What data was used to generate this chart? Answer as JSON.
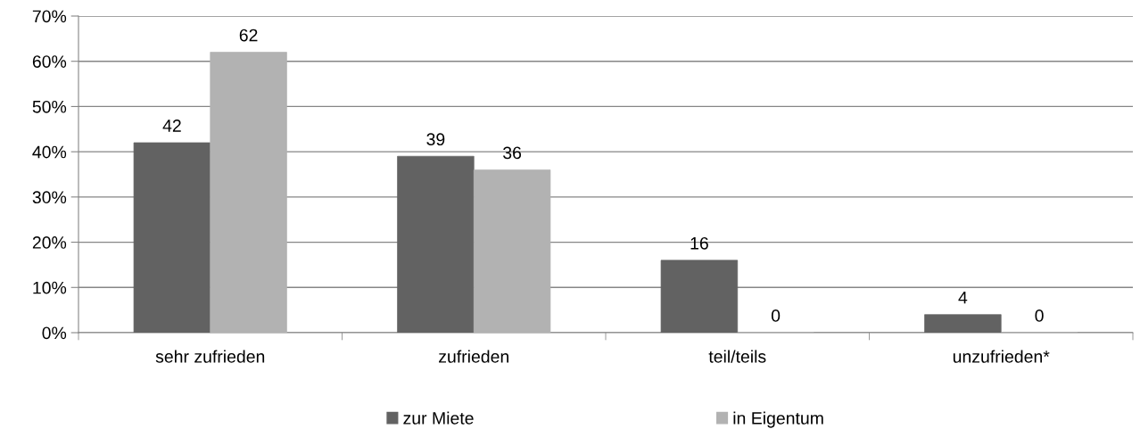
{
  "chart_data": {
    "type": "bar",
    "categories": [
      "sehr zufrieden",
      "zufrieden",
      "teil/teils",
      "unzufrieden*"
    ],
    "series": [
      {
        "name": "zur Miete",
        "color": "#626262",
        "values": [
          42,
          39,
          16,
          4
        ]
      },
      {
        "name": "in Eigentum",
        "color": "#b2b2b2",
        "values": [
          62,
          36,
          0,
          0
        ]
      }
    ],
    "ylim": [
      0,
      70
    ],
    "yticks": [
      {
        "value": 0,
        "label": "0%"
      },
      {
        "value": 10,
        "label": "10%"
      },
      {
        "value": 20,
        "label": "20%"
      },
      {
        "value": 30,
        "label": "30%"
      },
      {
        "value": 40,
        "label": "40%"
      },
      {
        "value": 50,
        "label": "50%"
      },
      {
        "value": 60,
        "label": "60%"
      },
      {
        "value": 70,
        "label": "70%"
      }
    ],
    "grid": "y",
    "legend": "bottom",
    "data_labels": true
  }
}
